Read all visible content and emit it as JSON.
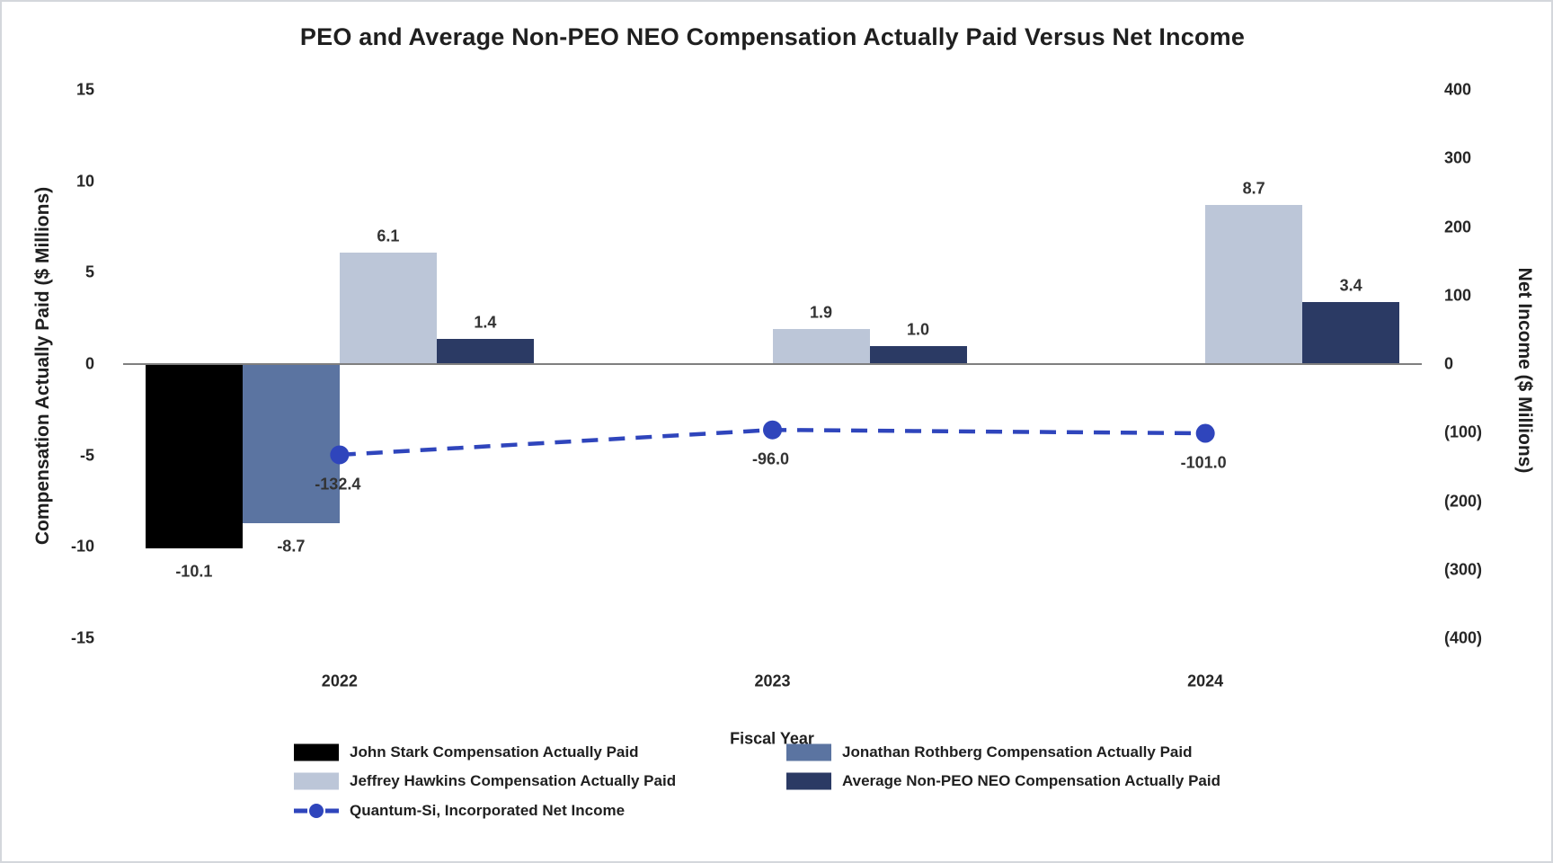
{
  "title": "PEO and Average Non-PEO NEO Compensation Actually Paid Versus Net Income",
  "chart_data": {
    "type": "combo-bar-line",
    "categories": [
      "2022",
      "2023",
      "2024"
    ],
    "xlabel": "Fiscal Year",
    "left_axis": {
      "label": "Compensation Actually Paid ($ Millions)",
      "ticks": [
        15,
        10,
        5,
        0,
        -5,
        -10,
        -15
      ],
      "range": [
        -15,
        15
      ]
    },
    "right_axis": {
      "label": "Net Income ($ Millions)",
      "ticks": [
        {
          "label": "400",
          "value": 400
        },
        {
          "label": "300",
          "value": 300
        },
        {
          "label": "200",
          "value": 200
        },
        {
          "label": "100",
          "value": 100
        },
        {
          "label": "0",
          "value": 0
        },
        {
          "label": "(100)",
          "value": -100
        },
        {
          "label": "(200)",
          "value": -200
        },
        {
          "label": "(300)",
          "value": -300
        },
        {
          "label": "(400)",
          "value": -400
        }
      ],
      "range": [
        -400,
        400
      ]
    },
    "bar_series": [
      {
        "name": "John Stark Compensation Actually Paid",
        "color": "#000000",
        "values": [
          -10.1,
          null,
          null
        ]
      },
      {
        "name": "Jonathan Rothberg Compensation Actually Paid",
        "color": "#5B74A1",
        "values": [
          -8.7,
          null,
          null
        ]
      },
      {
        "name": "Jeffrey Hawkins Compensation Actually Paid",
        "color": "#BCC6D8",
        "values": [
          6.1,
          1.9,
          8.7
        ]
      },
      {
        "name": "Average Non-PEO NEO Compensation Actually Paid",
        "color": "#2B3A64",
        "values": [
          1.4,
          1.0,
          3.4
        ]
      }
    ],
    "line_series": {
      "name": "Quantum-Si, Incorporated Net Income",
      "color": "#2F45BC",
      "axis": "right",
      "values": [
        -132.4,
        -96.0,
        -101.0
      ]
    },
    "legend_position": "bottom",
    "grid": false
  },
  "legend": {
    "items": [
      {
        "type": "swatch",
        "color": "#000000",
        "label": "John Stark Compensation Actually Paid",
        "col": 0,
        "row": 0
      },
      {
        "type": "swatch",
        "color": "#5B74A1",
        "label": "Jonathan Rothberg Compensation Actually Paid",
        "col": 1,
        "row": 0
      },
      {
        "type": "swatch",
        "color": "#BCC6D8",
        "label": "Jeffrey Hawkins Compensation Actually Paid",
        "col": 0,
        "row": 1
      },
      {
        "type": "swatch",
        "color": "#2B3A64",
        "label": "Average Non-PEO NEO Compensation Actually Paid",
        "col": 1,
        "row": 1
      },
      {
        "type": "line",
        "color": "#2F45BC",
        "label": "Quantum-Si, Incorporated Net Income",
        "col": 0,
        "row": 2
      }
    ]
  },
  "colors": {
    "axis_line": "#7f7f7f",
    "text": "#262626",
    "label_text": "#333333"
  }
}
